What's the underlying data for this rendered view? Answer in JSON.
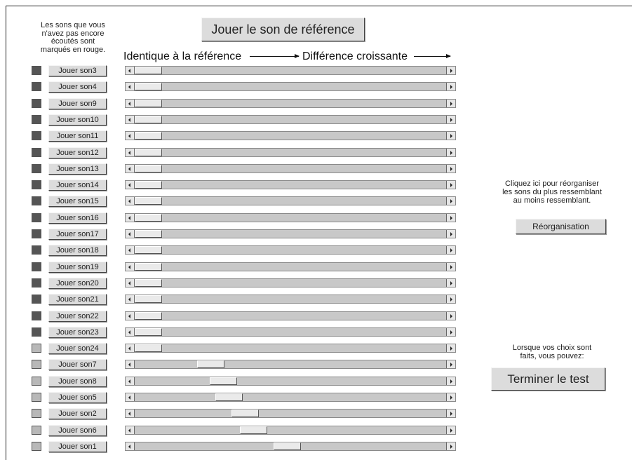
{
  "reference_button": "Jouer le son de référence",
  "legend": [
    "Les sons que vous",
    "n'avez pas encore",
    "écoutés sont",
    "marqués en rouge."
  ],
  "header": {
    "left": "Identique à la référence",
    "right": "Différence croissante"
  },
  "colors": {
    "unheard_marker": "#555555",
    "heard_marker": "#b8b8b8"
  },
  "rows": [
    {
      "label": "Jouer son3",
      "heard": false,
      "position": 0.0
    },
    {
      "label": "Jouer son4",
      "heard": false,
      "position": 0.0
    },
    {
      "label": "Jouer son9",
      "heard": false,
      "position": 0.0
    },
    {
      "label": "Jouer son10",
      "heard": false,
      "position": 0.0
    },
    {
      "label": "Jouer son11",
      "heard": false,
      "position": 0.0
    },
    {
      "label": "Jouer son12",
      "heard": false,
      "position": 0.0
    },
    {
      "label": "Jouer son13",
      "heard": false,
      "position": 0.0
    },
    {
      "label": "Jouer son14",
      "heard": false,
      "position": 0.0
    },
    {
      "label": "Jouer son15",
      "heard": false,
      "position": 0.0
    },
    {
      "label": "Jouer son16",
      "heard": false,
      "position": 0.0
    },
    {
      "label": "Jouer son17",
      "heard": false,
      "position": 0.0
    },
    {
      "label": "Jouer son18",
      "heard": false,
      "position": 0.0
    },
    {
      "label": "Jouer son19",
      "heard": false,
      "position": 0.0
    },
    {
      "label": "Jouer son20",
      "heard": false,
      "position": 0.0
    },
    {
      "label": "Jouer son21",
      "heard": false,
      "position": 0.0
    },
    {
      "label": "Jouer son22",
      "heard": false,
      "position": 0.0
    },
    {
      "label": "Jouer son23",
      "heard": false,
      "position": 0.0
    },
    {
      "label": "Jouer son24",
      "heard": true,
      "position": 0.0
    },
    {
      "label": "Jouer son7",
      "heard": true,
      "position": 0.22
    },
    {
      "label": "Jouer son8",
      "heard": true,
      "position": 0.265
    },
    {
      "label": "Jouer son5",
      "heard": true,
      "position": 0.285
    },
    {
      "label": "Jouer son2",
      "heard": true,
      "position": 0.34
    },
    {
      "label": "Jouer son6",
      "heard": true,
      "position": 0.37
    },
    {
      "label": "Jouer son1",
      "heard": true,
      "position": 0.49
    }
  ],
  "reorganize": {
    "text": [
      "Cliquez ici pour réorganiser",
      "les sons du plus ressemblant",
      "au moins ressemblant."
    ],
    "button": "Réorganisation"
  },
  "finish": {
    "text": [
      "Lorsque vos choix sont",
      "faits, vous pouvez:"
    ],
    "button": "Terminer le test"
  }
}
